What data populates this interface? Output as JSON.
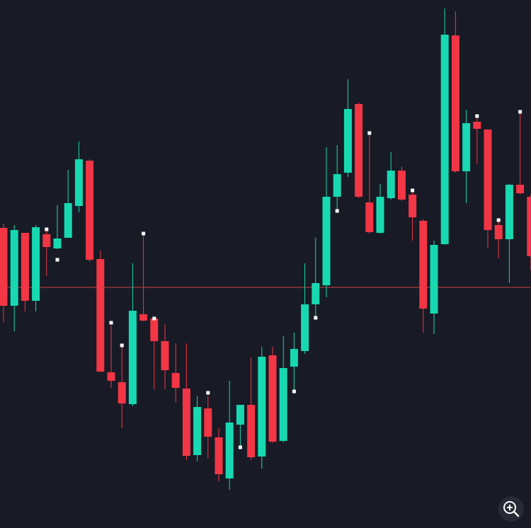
{
  "chart_data": {
    "type": "candlestick",
    "ylim": [
      0,
      746
    ],
    "up_color": "#18d8b2",
    "down_color": "#f23645",
    "marker_color": "#ffffff",
    "level_color": "#c8403f",
    "level": 340,
    "open": [
      424,
      314,
      417,
      321,
      415,
      395,
      410,
      455,
      519,
      380,
      220,
      206,
      175,
      302,
      296,
      264,
      219,
      197,
      103,
      169,
      128,
      70,
      146,
      174,
      101,
      244,
      123,
      228,
      250,
      316,
      343,
      468,
      502,
      599,
      460,
      417,
      466,
      505,
      471,
      434,
      303,
      401,
      696,
      504,
      574,
      563,
      428,
      408,
      485,
      468
    ],
    "high": [
      430,
      428,
      417,
      428,
      420,
      456,
      506,
      546,
      521,
      392,
      286,
      256,
      374,
      413,
      296,
      288,
      261,
      261,
      186,
      186,
      141,
      208,
      174,
      241,
      256,
      256,
      271,
      276,
      374,
      410,
      538,
      541,
      634,
      601,
      556,
      486,
      531,
      511,
      474,
      436,
      406,
      734,
      730,
      591,
      580,
      563,
      433,
      486,
      586,
      471
    ],
    "low": [
      291,
      278,
      306,
      306,
      356,
      394,
      410,
      446,
      376,
      220,
      198,
      141,
      172,
      292,
      196,
      196,
      178,
      96,
      94,
      98,
      66,
      54,
      116,
      96,
      84,
      120,
      121,
      196,
      246,
      298,
      326,
      450,
      496,
      466,
      416,
      416,
      464,
      462,
      406,
      276,
      274,
      400,
      502,
      459,
      514,
      396,
      381,
      346,
      471,
      364
    ],
    "close": [
      314,
      421,
      321,
      425,
      397,
      409,
      459,
      521,
      379,
      221,
      208,
      176,
      307,
      293,
      264,
      223,
      198,
      102,
      171,
      129,
      76,
      149,
      174,
      100,
      242,
      122,
      226,
      253,
      316,
      346,
      468,
      500,
      592,
      468,
      418,
      468,
      505,
      464,
      439,
      310,
      400,
      697,
      504,
      572,
      564,
      421,
      408,
      485,
      473,
      384
    ],
    "markers": [
      null,
      null,
      null,
      null,
      422,
      379,
      null,
      null,
      null,
      null,
      290,
      258,
      null,
      416,
      296,
      null,
      null,
      null,
      null,
      191,
      null,
      null,
      114,
      null,
      null,
      null,
      null,
      193,
      null,
      297,
      null,
      448,
      null,
      null,
      558,
      null,
      null,
      null,
      477,
      null,
      null,
      null,
      null,
      null,
      582,
      null,
      435,
      null,
      588,
      null
    ]
  }
}
